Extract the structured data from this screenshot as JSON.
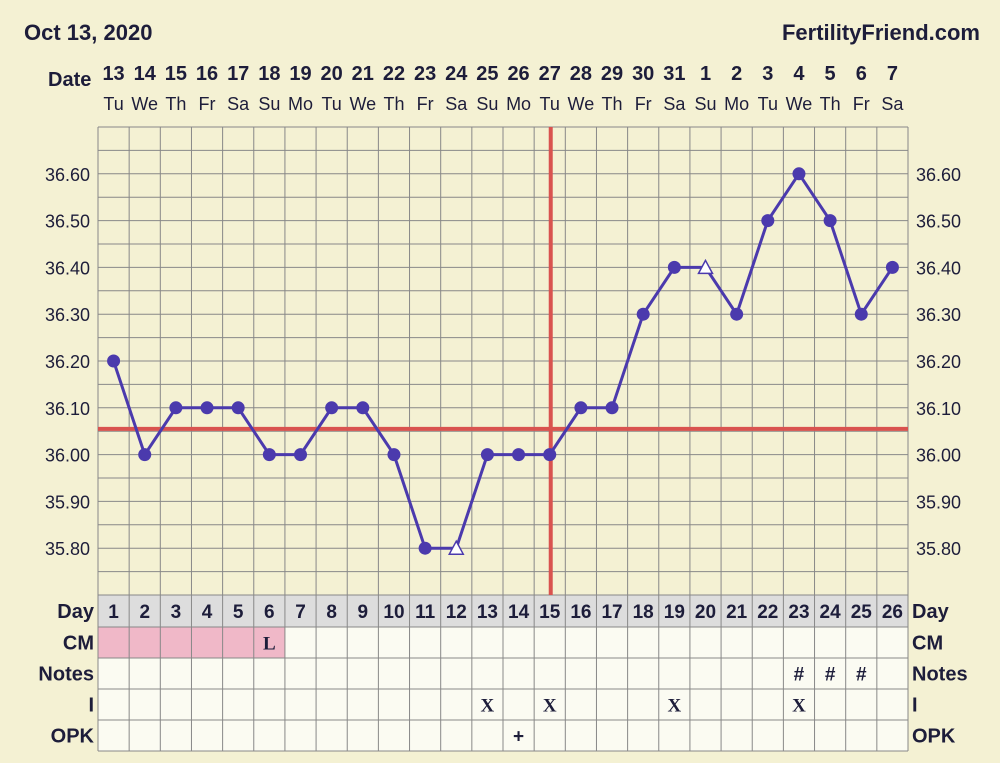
{
  "header": {
    "date": "Oct 13, 2020",
    "site": "FertilityFriend.com"
  },
  "labels": {
    "date": "Date",
    "day": "Day",
    "cm": "CM",
    "notes": "Notes",
    "intercourse": "I",
    "opk": "OPK"
  },
  "colors": {
    "background": "#f4f1d3",
    "grid": "#888888",
    "temp_line": "#4b3aad",
    "coverline": "#d9534f",
    "menstruation": "#f0b8c8",
    "opk_positive": "#8fd97f",
    "text": "#1d1d3a"
  },
  "chart_data": {
    "type": "line",
    "title": "",
    "xlabel": "Day",
    "ylabel": "",
    "ylim": [
      35.7,
      36.7
    ],
    "yticks": [
      "35.80",
      "35.90",
      "36.00",
      "36.10",
      "36.20",
      "36.30",
      "36.40",
      "36.50",
      "36.60"
    ],
    "dates": [
      "13",
      "14",
      "15",
      "16",
      "17",
      "18",
      "19",
      "20",
      "21",
      "22",
      "23",
      "24",
      "25",
      "26",
      "27",
      "28",
      "29",
      "30",
      "31",
      "1",
      "2",
      "3",
      "4",
      "5",
      "6",
      "7"
    ],
    "weekdays": [
      "Tu",
      "We",
      "Th",
      "Fr",
      "Sa",
      "Su",
      "Mo",
      "Tu",
      "We",
      "Th",
      "Fr",
      "Sa",
      "Su",
      "Mo",
      "Tu",
      "We",
      "Th",
      "Fr",
      "Sa",
      "Su",
      "Mo",
      "Tu",
      "We",
      "Th",
      "Fr",
      "Sa"
    ],
    "days": [
      1,
      2,
      3,
      4,
      5,
      6,
      7,
      8,
      9,
      10,
      11,
      12,
      13,
      14,
      15,
      16,
      17,
      18,
      19,
      20,
      21,
      22,
      23,
      24,
      25,
      26
    ],
    "series": [
      {
        "values": [
          36.2,
          36.0,
          36.1,
          36.1,
          36.1,
          36.0,
          36.0,
          36.1,
          36.1,
          36.0,
          35.8,
          35.8,
          36.0,
          36.0,
          36.0,
          36.1,
          36.1,
          36.3,
          36.4,
          36.4,
          36.3,
          36.5,
          36.6,
          36.5,
          36.3,
          36.4
        ],
        "discarded_days": [
          12,
          20
        ]
      }
    ],
    "coverline": 36.055,
    "ovulation_day": 15,
    "grid": true,
    "rows": {
      "cm": {
        "6": "L"
      },
      "menstruation_days": [
        1,
        2,
        3,
        4,
        5,
        6
      ],
      "notes": {
        "23": "#",
        "24": "#",
        "25": "#"
      },
      "intercourse": {
        "13": "X",
        "15": "X",
        "19": "X",
        "23": "X"
      },
      "opk": {
        "14": "+"
      }
    }
  }
}
